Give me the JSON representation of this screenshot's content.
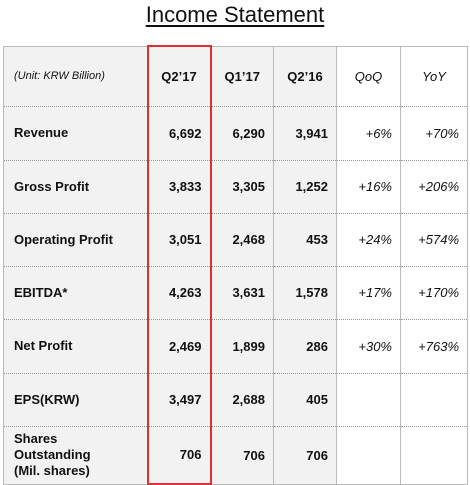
{
  "title": "Income Statement",
  "table": {
    "header": [
      "(Unit: KRW Billion)",
      "Q2’17",
      "Q1’17",
      "Q2’16",
      "QoQ",
      "YoY"
    ],
    "rows": [
      [
        "Revenue",
        "6,692",
        "6,290",
        "3,941",
        "+6%",
        "+70%"
      ],
      [
        "Gross Profit",
        "3,833",
        "3,305",
        "1,252",
        "+16%",
        "+206%"
      ],
      [
        "Operating Profit",
        "3,051",
        "2,468",
        "453",
        "+24%",
        "+574%"
      ],
      [
        "EBITDA*",
        "4,263",
        "3,631",
        "1,578",
        "+17%",
        "+170%"
      ],
      [
        "Net Profit",
        "2,469",
        "1,899",
        "286",
        "+30%",
        "+763%"
      ],
      [
        "EPS(KRW)",
        "3,497",
        "2,688",
        "405"
      ],
      [
        "Shares Outstanding (Mil. shares)",
        "706",
        "706",
        "706"
      ]
    ]
  }
}
